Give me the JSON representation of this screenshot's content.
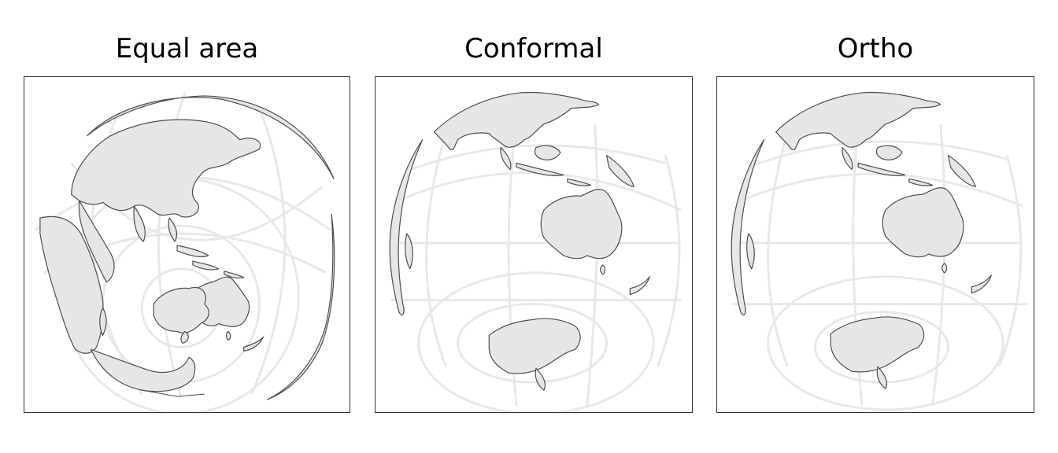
{
  "panels": [
    {
      "title": "Equal area"
    },
    {
      "title": "Conformal"
    },
    {
      "title": "Ortho"
    }
  ],
  "colors": {
    "land_fill": "#e6e6e6",
    "land_stroke": "#4d4d4d",
    "graticule": "#e8e8e8",
    "frame": "#333333",
    "background": "#ffffff"
  }
}
